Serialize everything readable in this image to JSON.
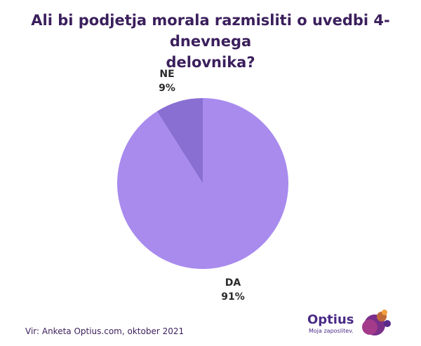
{
  "chart_data": {
    "type": "pie",
    "title_line1": "Ali bi podjetja morala razmisliti o uvedbi 4-dnevnega",
    "title_line2": "delovnika?",
    "slices": [
      {
        "name": "DA",
        "value": 91,
        "label": "91%",
        "color": "#a98bee"
      },
      {
        "name": "NE",
        "value": 9,
        "label": "9%",
        "color": "#8a6fd3"
      }
    ]
  },
  "footer": {
    "source": "Vir: Anketa Optius.com, oktober 2021",
    "brand_name": "Optius",
    "brand_tagline": "Moja zaposlitev."
  },
  "colors": {
    "title": "#3b1f5c",
    "brand": "#4a2a86"
  }
}
